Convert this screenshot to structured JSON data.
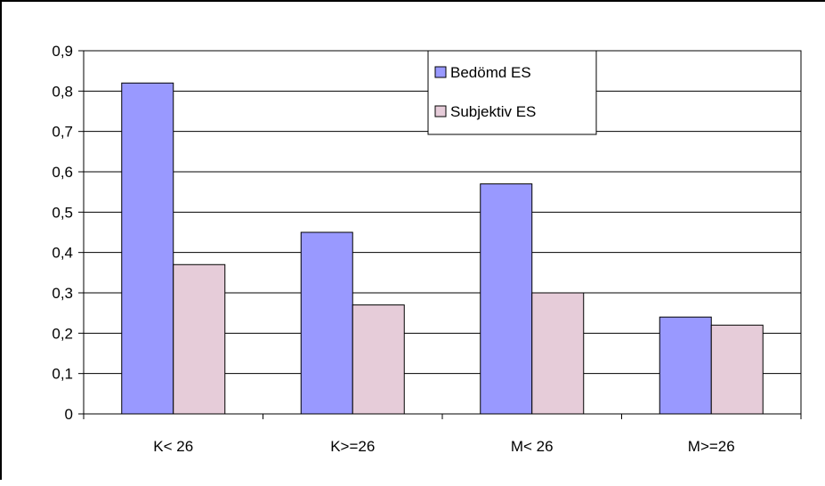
{
  "chart_data": {
    "type": "bar",
    "title": "",
    "xlabel": "",
    "ylabel": "",
    "categories": [
      "K< 26",
      "K>=26",
      "M< 26",
      "M>=26"
    ],
    "series": [
      {
        "name": "Bedömd ES",
        "values": [
          0.82,
          0.45,
          0.57,
          0.24
        ],
        "color": "#9999ff"
      },
      {
        "name": "Subjektiv ES",
        "values": [
          0.37,
          0.27,
          0.3,
          0.22
        ],
        "color": "#e6ccd9"
      }
    ],
    "ylim": [
      0,
      0.9
    ],
    "yticks": [
      "0",
      "0,1",
      "0,2",
      "0,3",
      "0,4",
      "0,5",
      "0,6",
      "0,7",
      "0,8",
      "0,9"
    ],
    "grid": true,
    "legend_position": "top-right"
  }
}
